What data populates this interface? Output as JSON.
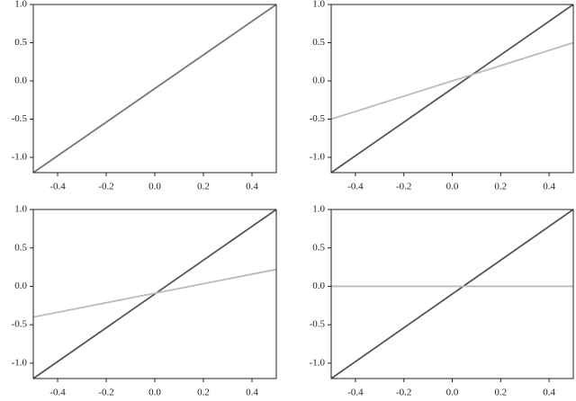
{
  "chart_data": [
    {
      "type": "line",
      "x": [
        -0.5,
        0.5
      ],
      "series": [
        {
          "color": "#777777",
          "values": [
            -1.2,
            1.0
          ]
        }
      ],
      "xlim": [
        -0.5,
        0.5
      ],
      "ylim": [
        -1.2,
        1.0
      ],
      "xticks": [
        -0.4,
        -0.2,
        {
          "value": 0,
          "label": "0.0"
        },
        0.2,
        0.4
      ],
      "yticks": [
        {
          "value": 1,
          "label": "1.0"
        },
        0.5,
        {
          "value": 0,
          "label": "0.0"
        },
        -0.5,
        {
          "value": -1,
          "label": "-1.0"
        }
      ]
    },
    {
      "type": "line",
      "x": [
        -0.5,
        0.5
      ],
      "series": [
        {
          "color": "#555555",
          "values": [
            -1.2,
            1.0
          ]
        },
        {
          "color": "#bbbbbb",
          "values": [
            -0.5,
            0.5
          ]
        }
      ],
      "xlim": [
        -0.5,
        0.5
      ],
      "ylim": [
        -1.2,
        1.0
      ],
      "xticks": [
        -0.4,
        -0.2,
        {
          "value": 0,
          "label": "0.0"
        },
        0.2,
        0.4
      ],
      "yticks": [
        {
          "value": 1,
          "label": "1.0"
        },
        0.5,
        {
          "value": 0,
          "label": "0.0"
        },
        -0.5,
        {
          "value": -1,
          "label": "-1.0"
        }
      ]
    },
    {
      "type": "line",
      "x": [
        -0.5,
        0.5
      ],
      "series": [
        {
          "color": "#555555",
          "values": [
            -1.2,
            1.0
          ]
        },
        {
          "color": "#bbbbbb",
          "values": [
            -0.4,
            0.22
          ]
        }
      ],
      "xlim": [
        -0.5,
        0.5
      ],
      "ylim": [
        -1.2,
        1.0
      ],
      "xticks": [
        -0.4,
        -0.2,
        {
          "value": 0,
          "label": "0.0"
        },
        0.2,
        0.4
      ],
      "yticks": [
        {
          "value": 1,
          "label": "1.0"
        },
        0.5,
        {
          "value": 0,
          "label": "0.0"
        },
        -0.5,
        {
          "value": -1,
          "label": "-1.0"
        }
      ]
    },
    {
      "type": "line",
      "x": [
        -0.5,
        0.5
      ],
      "series": [
        {
          "color": "#555555",
          "values": [
            -1.2,
            1.0
          ]
        },
        {
          "color": "#bbbbbb",
          "values": [
            0,
            0
          ]
        }
      ],
      "xlim": [
        -0.5,
        0.5
      ],
      "ylim": [
        -1.2,
        1.0
      ],
      "xticks": [
        -0.4,
        -0.2,
        {
          "value": 0,
          "label": "0.0"
        },
        0.2,
        0.4
      ],
      "yticks": [
        {
          "value": 1,
          "label": "1.0"
        },
        0.5,
        {
          "value": 0,
          "label": "0.0"
        },
        -0.5,
        {
          "value": -1,
          "label": "-1.0"
        }
      ]
    }
  ]
}
